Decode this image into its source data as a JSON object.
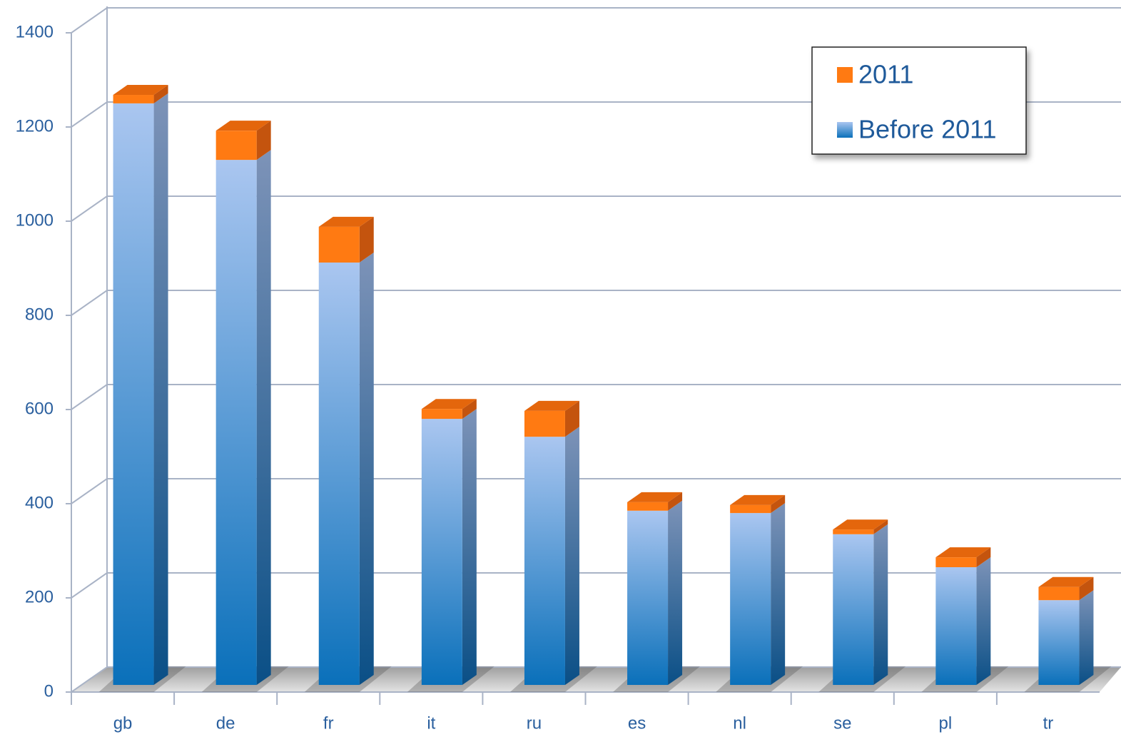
{
  "chart_data": {
    "type": "bar",
    "stacked": true,
    "three_d": true,
    "categories": [
      "gb",
      "de",
      "fr",
      "it",
      "ru",
      "es",
      "nl",
      "se",
      "pl",
      "tr"
    ],
    "series": [
      {
        "name": "Before 2011",
        "color": "#1a7cc4",
        "values": [
          1235,
          1115,
          897,
          565,
          527,
          370,
          365,
          320,
          250,
          180
        ]
      },
      {
        "name": "2011",
        "color": "#ff7a12",
        "values": [
          18,
          62,
          76,
          21,
          55,
          18,
          17,
          10,
          21,
          28
        ]
      }
    ],
    "ylim": [
      0,
      1400
    ],
    "yticks": [
      0,
      200,
      400,
      600,
      800,
      1000,
      1200,
      1400
    ],
    "grid": true,
    "legend": "top-right"
  }
}
